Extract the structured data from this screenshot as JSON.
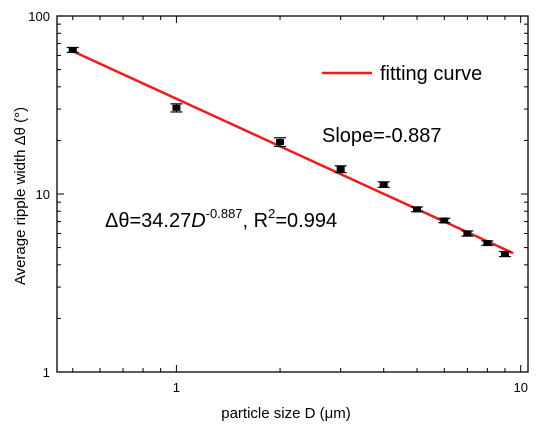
{
  "chart_data": {
    "type": "scatter",
    "title": "",
    "xlabel": "particle size D (μm)",
    "ylabel": "Average ripple width Δθ (°)",
    "xscale": "log",
    "yscale": "log",
    "xlim": [
      0.45,
      10.5
    ],
    "ylim": [
      1,
      100
    ],
    "x_ticks": [
      1,
      10
    ],
    "x_tick_labels": [
      "1",
      "10"
    ],
    "y_ticks": [
      1,
      10,
      100
    ],
    "y_tick_labels": [
      "1",
      "10",
      "100"
    ],
    "grid": false,
    "legend": {
      "position": "top-right",
      "entries": [
        "fitting curve"
      ]
    },
    "series": [
      {
        "name": "",
        "type": "scatter",
        "color": "#000000",
        "x": [
          0.5,
          1,
          2,
          3,
          4,
          5,
          6,
          7,
          8,
          9
        ],
        "y": [
          64.5,
          30.5,
          19.6,
          13.8,
          11.3,
          8.2,
          7.1,
          6.0,
          5.3,
          4.6
        ],
        "err": [
          2.0,
          1.6,
          1.1,
          0.6,
          0.4,
          0.25,
          0.2,
          0.2,
          0.15,
          0.15
        ]
      },
      {
        "name": "fitting curve",
        "type": "line",
        "color": "#ee1c1c",
        "coefficient": 34.27,
        "exponent": -0.887,
        "x_range": [
          0.5,
          9.5
        ]
      }
    ],
    "annotations": {
      "slope": "Slope=-0.887",
      "equation": {
        "part1": "Δθ=34.27",
        "var": "D",
        "sup": "-0.887",
        "part2": ", R",
        "sup2": "2",
        "part3": "=0.994"
      }
    }
  }
}
